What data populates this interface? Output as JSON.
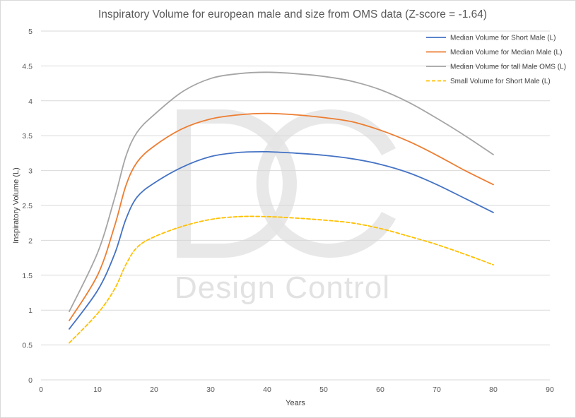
{
  "chart_data": {
    "type": "line",
    "title": "Inspiratory Volume for european male and size from OMS data (Z-score = -1.64)",
    "xlabel": "Years",
    "ylabel": "Inspiratory Volume (L)",
    "xlim": [
      0,
      90
    ],
    "ylim": [
      0,
      5
    ],
    "x_ticks": [
      "0",
      "10",
      "20",
      "30",
      "40",
      "50",
      "60",
      "70",
      "80",
      "90"
    ],
    "y_ticks": [
      "0",
      "0.5",
      "1",
      "1.5",
      "2",
      "2.5",
      "3",
      "3.5",
      "4",
      "4.5",
      "5"
    ],
    "grid": "horizontal",
    "legend_position": "top-right",
    "series": [
      {
        "name": "Median Volume for Short Male (L)",
        "color": "#4472c4",
        "dash": "solid",
        "x": [
          5,
          10,
          13,
          15,
          17,
          20,
          25,
          30,
          35,
          40,
          45,
          50,
          55,
          60,
          65,
          70,
          75,
          80
        ],
        "y": [
          0.73,
          1.28,
          1.8,
          2.3,
          2.62,
          2.82,
          3.05,
          3.2,
          3.26,
          3.27,
          3.25,
          3.22,
          3.17,
          3.09,
          2.97,
          2.8,
          2.6,
          2.4
        ]
      },
      {
        "name": "Median Volume for Median Male (L)",
        "color": "#ed7d31",
        "dash": "solid",
        "x": [
          5,
          10,
          13,
          15,
          17,
          20,
          25,
          30,
          35,
          40,
          45,
          50,
          55,
          60,
          65,
          70,
          75,
          80
        ],
        "y": [
          0.85,
          1.5,
          2.2,
          2.78,
          3.12,
          3.35,
          3.6,
          3.74,
          3.8,
          3.82,
          3.8,
          3.76,
          3.7,
          3.58,
          3.42,
          3.22,
          3.0,
          2.8
        ]
      },
      {
        "name": "Median Volume for tall Male OMS (L)",
        "color": "#a5a5a5",
        "dash": "solid",
        "x": [
          5,
          10,
          13,
          15,
          17,
          20,
          25,
          30,
          35,
          40,
          45,
          50,
          55,
          60,
          65,
          70,
          75,
          80
        ],
        "y": [
          0.98,
          1.82,
          2.6,
          3.2,
          3.55,
          3.8,
          4.13,
          4.32,
          4.39,
          4.41,
          4.39,
          4.35,
          4.28,
          4.16,
          3.98,
          3.75,
          3.5,
          3.23
        ]
      },
      {
        "name": "Small Volume for Short Male (L)",
        "color": "#ffc000",
        "dash": "dashed",
        "x": [
          5,
          10,
          13,
          15,
          17,
          20,
          25,
          30,
          35,
          40,
          45,
          50,
          55,
          60,
          65,
          70,
          75,
          80
        ],
        "y": [
          0.53,
          0.95,
          1.3,
          1.65,
          1.9,
          2.05,
          2.2,
          2.3,
          2.34,
          2.34,
          2.32,
          2.29,
          2.25,
          2.17,
          2.06,
          1.94,
          1.8,
          1.65
        ]
      }
    ]
  },
  "watermark": {
    "logo_text": "DC",
    "caption": "Design Control"
  }
}
